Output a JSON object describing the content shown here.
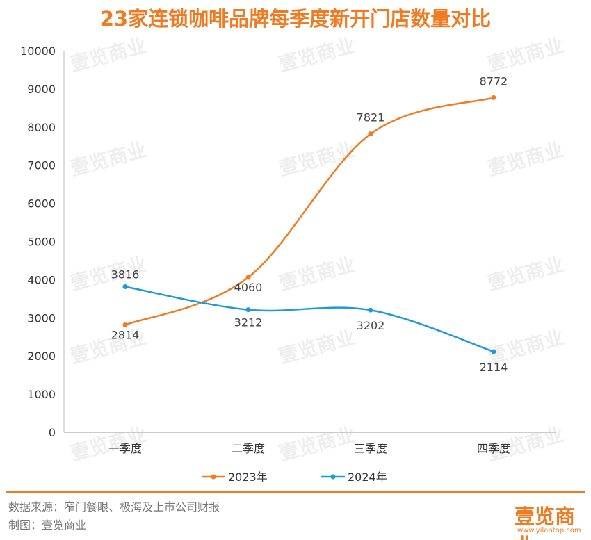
{
  "chart_data": {
    "type": "line",
    "title": "23家连锁咖啡品牌每季度新开门店数量对比",
    "categories": [
      "一季度",
      "二季度",
      "三季度",
      "四季度"
    ],
    "series": [
      {
        "name": "2023年",
        "values": [
          2814,
          4060,
          7821,
          8772
        ],
        "color": "#F07B22"
      },
      {
        "name": "2024年",
        "values": [
          3816,
          3212,
          3202,
          2114
        ],
        "color": "#1E9AD6"
      }
    ],
    "ylim": [
      0,
      10000
    ],
    "yticks": [
      0,
      1000,
      2000,
      3000,
      4000,
      5000,
      6000,
      7000,
      8000,
      9000,
      10000
    ],
    "xlabel": "",
    "ylabel": "",
    "grid": false,
    "legend": "bottom",
    "smooth": true
  },
  "footer": {
    "source": "数据来源：窄门餐眼、极海及上市公司财报",
    "maker": "制图：壹览商业"
  },
  "logo": {
    "text": "壹览商业",
    "url": "www.yilantop.com"
  },
  "watermark": "壹览商业"
}
